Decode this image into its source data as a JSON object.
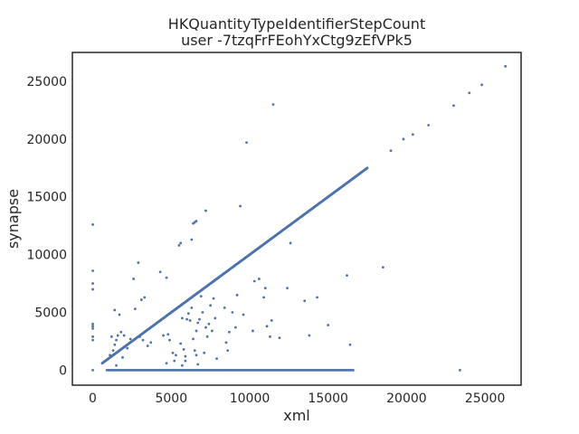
{
  "chart_data": {
    "type": "scatter",
    "title_line1": "HKQuantityTypeIdentifierStepCount",
    "title_line2": "user -7tzqFrFEohYxCtg9zEfVPk5",
    "xlabel": "xml",
    "ylabel": "synapse",
    "xlim": [
      -1300,
      27300
    ],
    "ylim": [
      -1300,
      27500
    ],
    "xticks": [
      0,
      5000,
      10000,
      15000,
      20000,
      25000
    ],
    "yticks": [
      0,
      5000,
      10000,
      15000,
      20000,
      25000
    ],
    "grid": false,
    "color": "#4c72b0",
    "diagonal": {
      "from": 600,
      "to": 17500,
      "count": 560
    },
    "zero_row": {
      "from": 900,
      "to": 16600,
      "count": 170
    },
    "points": [
      [
        0,
        12600
      ],
      [
        0,
        8600
      ],
      [
        0,
        7500
      ],
      [
        0,
        7000
      ],
      [
        0,
        4000
      ],
      [
        0,
        3800
      ],
      [
        0,
        3600
      ],
      [
        0,
        2900
      ],
      [
        0,
        2600
      ],
      [
        0,
        0
      ],
      [
        1400,
        5200
      ],
      [
        1600,
        3000
      ],
      [
        1500,
        2600
      ],
      [
        1400,
        2200
      ],
      [
        1200,
        2900
      ],
      [
        1800,
        3300
      ],
      [
        1700,
        4800
      ],
      [
        1300,
        1700
      ],
      [
        1100,
        1300
      ],
      [
        1500,
        400
      ],
      [
        1900,
        1100
      ],
      [
        2000,
        3000
      ],
      [
        2600,
        7900
      ],
      [
        2900,
        9300
      ],
      [
        2700,
        5300
      ],
      [
        3100,
        6100
      ],
      [
        3300,
        6300
      ],
      [
        3200,
        2600
      ],
      [
        3000,
        2900
      ],
      [
        3500,
        2100
      ],
      [
        3700,
        2400
      ],
      [
        2400,
        2700
      ],
      [
        2200,
        1900
      ],
      [
        4300,
        8500
      ],
      [
        4700,
        8000
      ],
      [
        4500,
        3000
      ],
      [
        4800,
        3100
      ],
      [
        4900,
        2600
      ],
      [
        5100,
        1500
      ],
      [
        5300,
        1300
      ],
      [
        4700,
        600
      ],
      [
        5200,
        800
      ],
      [
        5500,
        10800
      ],
      [
        5600,
        11000
      ],
      [
        5700,
        4500
      ],
      [
        5600,
        2300
      ],
      [
        5800,
        1800
      ],
      [
        5900,
        1200
      ],
      [
        5900,
        800
      ],
      [
        5700,
        400
      ],
      [
        6000,
        4400
      ],
      [
        6200,
        4300
      ],
      [
        6300,
        5400
      ],
      [
        6100,
        4900
      ],
      [
        6400,
        12700
      ],
      [
        6600,
        12900
      ],
      [
        6500,
        12800
      ],
      [
        6300,
        11300
      ],
      [
        6700,
        4100
      ],
      [
        6800,
        4400
      ],
      [
        6600,
        3400
      ],
      [
        6400,
        2700
      ],
      [
        6500,
        1700
      ],
      [
        6600,
        1300
      ],
      [
        6700,
        500
      ],
      [
        7200,
        13800
      ],
      [
        6900,
        6400
      ],
      [
        7000,
        5000
      ],
      [
        7200,
        3700
      ],
      [
        7400,
        4000
      ],
      [
        7300,
        2900
      ],
      [
        7500,
        5600
      ],
      [
        7700,
        6200
      ],
      [
        7600,
        3400
      ],
      [
        7800,
        4500
      ],
      [
        7900,
        1000
      ],
      [
        7100,
        1500
      ],
      [
        8400,
        5400
      ],
      [
        8500,
        2400
      ],
      [
        8600,
        1700
      ],
      [
        8700,
        3300
      ],
      [
        8900,
        5000
      ],
      [
        9100,
        3700
      ],
      [
        9400,
        14200
      ],
      [
        9200,
        6500
      ],
      [
        9600,
        4800
      ],
      [
        9800,
        19700
      ],
      [
        10200,
        3400
      ],
      [
        10300,
        7700
      ],
      [
        10600,
        7900
      ],
      [
        10900,
        6300
      ],
      [
        11000,
        7100
      ],
      [
        11300,
        2900
      ],
      [
        11400,
        4300
      ],
      [
        11500,
        23000
      ],
      [
        11100,
        3800
      ],
      [
        11900,
        2800
      ],
      [
        12400,
        7100
      ],
      [
        12600,
        11000
      ],
      [
        13500,
        6000
      ],
      [
        13800,
        3000
      ],
      [
        14300,
        6300
      ],
      [
        15000,
        3900
      ],
      [
        16200,
        8200
      ],
      [
        16400,
        2200
      ],
      [
        18500,
        8900
      ],
      [
        19000,
        19000
      ],
      [
        19800,
        20000
      ],
      [
        20400,
        20400
      ],
      [
        21400,
        21200
      ],
      [
        23000,
        22900
      ],
      [
        23400,
        0
      ],
      [
        24000,
        24000
      ],
      [
        24800,
        24700
      ],
      [
        26300,
        26300
      ]
    ]
  }
}
